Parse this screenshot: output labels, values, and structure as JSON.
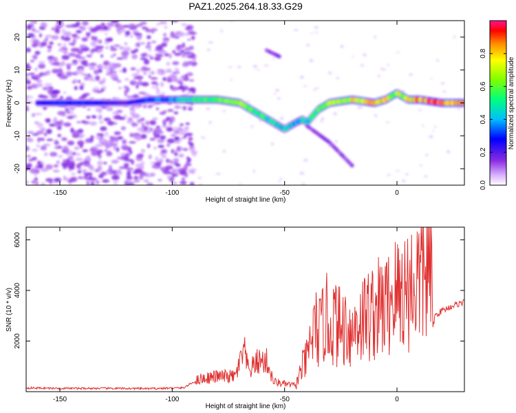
{
  "title": "PAZ1.2025.264.18.33.G29",
  "chart_data": [
    {
      "type": "heatmap",
      "xlabel": "Height of straight line (km)",
      "ylabel": "Frequency (Hz)",
      "xlim": [
        -165,
        30
      ],
      "ylim": [
        -25,
        25
      ],
      "xticks": [
        -150,
        -100,
        -50,
        0
      ],
      "yticks": [
        -20,
        -10,
        0,
        10,
        20
      ],
      "colorbar": {
        "label": "Normalized spectral amplitude",
        "range": [
          0,
          1
        ],
        "ticks": [
          "0.0",
          "0.2",
          "0.4",
          "0.6",
          "0.8"
        ],
        "tick_values": [
          0,
          0.2,
          0.4,
          0.6,
          0.8
        ]
      },
      "ridge": {
        "x": [
          -160,
          -150,
          -140,
          -120,
          -110,
          -100,
          -90,
          -80,
          -70,
          -60,
          -55,
          -50,
          -45,
          -42,
          -40,
          -35,
          -30,
          -20,
          -10,
          -5,
          0,
          5,
          10,
          20,
          30
        ],
        "y": [
          0,
          0,
          0,
          0,
          1,
          1,
          1,
          1,
          0,
          -4,
          -6,
          -8,
          -6,
          -5,
          -6,
          -2,
          0,
          1,
          0,
          1,
          3,
          1,
          1,
          0,
          0
        ],
        "amplitude": [
          0.25,
          0.3,
          0.3,
          0.2,
          0.35,
          0.4,
          0.55,
          0.6,
          0.7,
          0.55,
          0.5,
          0.45,
          0.45,
          0.5,
          0.45,
          0.6,
          0.7,
          0.8,
          0.85,
          0.8,
          0.7,
          0.8,
          0.9,
          0.95,
          0.9
        ]
      },
      "secondary_traces": [
        {
          "x": [
            -58,
            -52
          ],
          "y": [
            16,
            14
          ]
        },
        {
          "x": [
            -40,
            -30,
            -20
          ],
          "y": [
            -7,
            -12,
            -19
          ]
        }
      ]
    },
    {
      "type": "line",
      "xlabel": "Height of straight line (km)",
      "ylabel": "SNR (10 * v/v)",
      "xlim": [
        -165,
        30
      ],
      "ylim": [
        0,
        6500
      ],
      "xticks": [
        -150,
        -100,
        -50,
        0
      ],
      "yticks": [
        2000,
        4000,
        6000
      ],
      "color": "#e03030",
      "series": [
        {
          "name": "SNR",
          "x": [
            -165,
            -150,
            -130,
            -110,
            -95,
            -88,
            -80,
            -72,
            -68,
            -66,
            -62,
            -58,
            -55,
            -50,
            -45,
            -42,
            -40,
            -38,
            -36,
            -34,
            -32,
            -30,
            -28,
            -25,
            -22,
            -20,
            -18,
            -15,
            -10,
            -7,
            -4,
            -2,
            0,
            2,
            5,
            8,
            10,
            13,
            15,
            16,
            17,
            20,
            25,
            30
          ],
          "y": [
            150,
            130,
            130,
            120,
            150,
            500,
            600,
            600,
            1600,
            800,
            1200,
            1200,
            400,
            300,
            250,
            1000,
            1300,
            2200,
            2500,
            2300,
            3000,
            2600,
            2800,
            2500,
            2700,
            2200,
            2800,
            2900,
            3200,
            3300,
            3400,
            3900,
            3800,
            4000,
            4100,
            4300,
            4500,
            4800,
            4900,
            2600,
            3000,
            3200,
            3400,
            3550
          ]
        }
      ]
    }
  ]
}
